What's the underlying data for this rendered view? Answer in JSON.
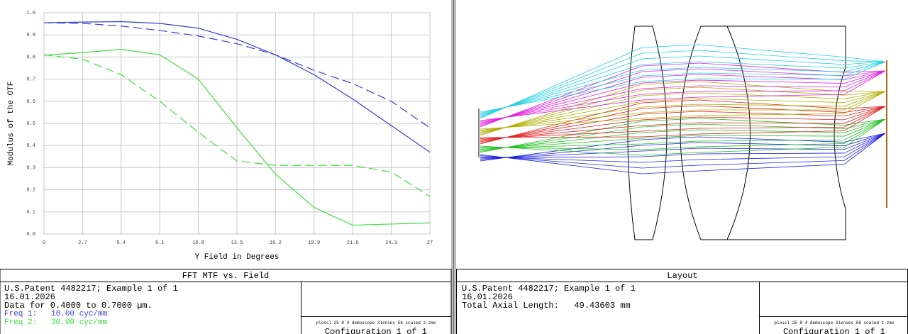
{
  "chart_data": {
    "type": "line",
    "ylabel": "Modulus of the OTF",
    "xlabel": "Y Field in Degrees",
    "x": [
      0,
      2.7,
      5.4,
      8.1,
      10.8,
      13.5,
      16.2,
      18.9,
      21.6,
      24.3,
      27
    ],
    "xlim": [
      0,
      27
    ],
    "ylim": [
      0,
      1
    ],
    "xticks": [
      0,
      2.7,
      5.4,
      8.1,
      10.8,
      13.5,
      16.2,
      18.9,
      21.6,
      24.3,
      27
    ],
    "yticks": [
      {
        "value": 0,
        "label": "0.0"
      },
      {
        "value": 0.1,
        "label": "0.1"
      },
      {
        "value": 0.2,
        "label": "0.2"
      },
      {
        "value": 0.3,
        "label": "0.3"
      },
      {
        "value": 0.4,
        "label": "0.4"
      },
      {
        "value": 0.5,
        "label": "0.5"
      },
      {
        "value": 0.6,
        "label": "0.6"
      },
      {
        "value": 0.7,
        "label": "0.7"
      },
      {
        "value": 0.8,
        "label": "0.8"
      },
      {
        "value": 0.9,
        "label": "0.9"
      },
      {
        "value": 1,
        "label": "1.0"
      }
    ],
    "grid": true,
    "series": [
      {
        "color": "#3a3ad8",
        "dashed": false,
        "values": [
          0.955,
          0.958,
          0.96,
          0.952,
          0.93,
          0.88,
          0.81,
          0.72,
          0.61,
          0.49,
          0.37
        ]
      },
      {
        "color": "#3a3ad8",
        "dashed": true,
        "values": [
          0.955,
          0.952,
          0.94,
          0.92,
          0.895,
          0.86,
          0.81,
          0.74,
          0.68,
          0.6,
          0.48
        ]
      },
      {
        "color": "#3ee03e",
        "dashed": false,
        "values": [
          0.808,
          0.82,
          0.835,
          0.81,
          0.7,
          0.48,
          0.27,
          0.12,
          0.04,
          0.045,
          0.05
        ]
      },
      {
        "color": "#3ee03e",
        "dashed": true,
        "values": [
          0.81,
          0.79,
          0.72,
          0.6,
          0.46,
          0.33,
          0.31,
          0.31,
          0.31,
          0.28,
          0.17
        ]
      }
    ]
  },
  "mtf_window": {
    "title": "FFT MTF vs. Field",
    "info": [
      "U.S.Patent 4482217; Example 1 of 1",
      "16.01.2026",
      "Data for 0.4000 to 0.7000 µm."
    ],
    "freqs": [
      "Freq 1:   10.00 cyc/mm",
      "Freq 2:   30.00 cyc/mm"
    ],
    "file": "plossl 25 8 4 demoscope 3lenses 56 scaled z.zmx",
    "config": "Configuration 1 of 1"
  },
  "layout_window": {
    "title": "Layout",
    "info": [
      "U.S.Patent 4482217; Example 1 of 1",
      "16.01.2026",
      "Total Axial Length:   49.43603 mm"
    ],
    "file": "plossl 25 8 4 demoscope 3lenses 56 scaled z.zmx",
    "config": "Configuration 1 of 1"
  }
}
